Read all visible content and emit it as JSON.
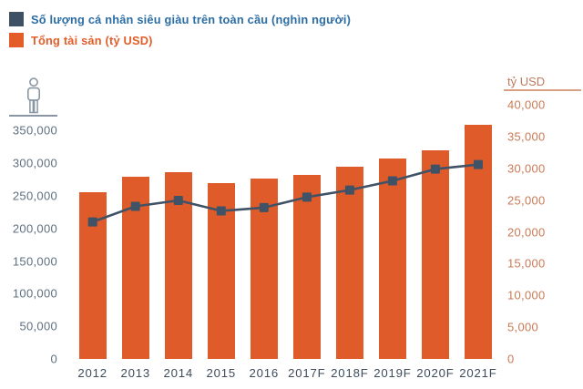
{
  "legend": {
    "items": [
      {
        "label": "Số lượng cá nhân siêu giàu trên toàn cầu (nghìn người)",
        "swatch_color": "#3d5064",
        "text_color": "#2b6da5"
      },
      {
        "label": "Tổng tài sản (tỷ USD)",
        "swatch_color": "#e45d28",
        "text_color": "#e45d28"
      }
    ]
  },
  "chart_data": {
    "type": "combo",
    "categories": [
      "2012",
      "2013",
      "2014",
      "2015",
      "2016",
      "2017F",
      "2018F",
      "2019F",
      "2020F",
      "2021F"
    ],
    "series": [
      {
        "name": "Số lượng cá nhân siêu giàu trên toàn cầu (nghìn người)",
        "type": "line",
        "axis": "left",
        "color": "#405266",
        "marker": "square",
        "values": [
          210000,
          234000,
          243000,
          227000,
          232000,
          248000,
          259000,
          273000,
          291000,
          298000
        ]
      },
      {
        "name": "Tổng tài sản (tỷ USD)",
        "type": "bar",
        "axis": "right",
        "color": "#e05b2a",
        "values": [
          26200,
          28700,
          29400,
          27700,
          28400,
          29000,
          30300,
          31600,
          32800,
          36900
        ]
      }
    ],
    "left_axis": {
      "header_icon": "person-icon",
      "min": 0,
      "max": 350000,
      "step": 50000,
      "tick_labels": [
        "0",
        "50,000",
        "100,000",
        "150,000",
        "200,000",
        "250,000",
        "300,000",
        "350,000"
      ],
      "tick_color": "#5e7081"
    },
    "right_axis": {
      "title": "tỷ USD",
      "min": 0,
      "max": 40000,
      "step": 5000,
      "tick_labels": [
        "0",
        "5,000",
        "10,000",
        "15,000",
        "20,000",
        "25,000",
        "30,000",
        "35,000",
        "40,000"
      ],
      "tick_color": "#c97a56"
    },
    "legend_position": "top-left",
    "grid": false,
    "background": "#ffffff"
  }
}
